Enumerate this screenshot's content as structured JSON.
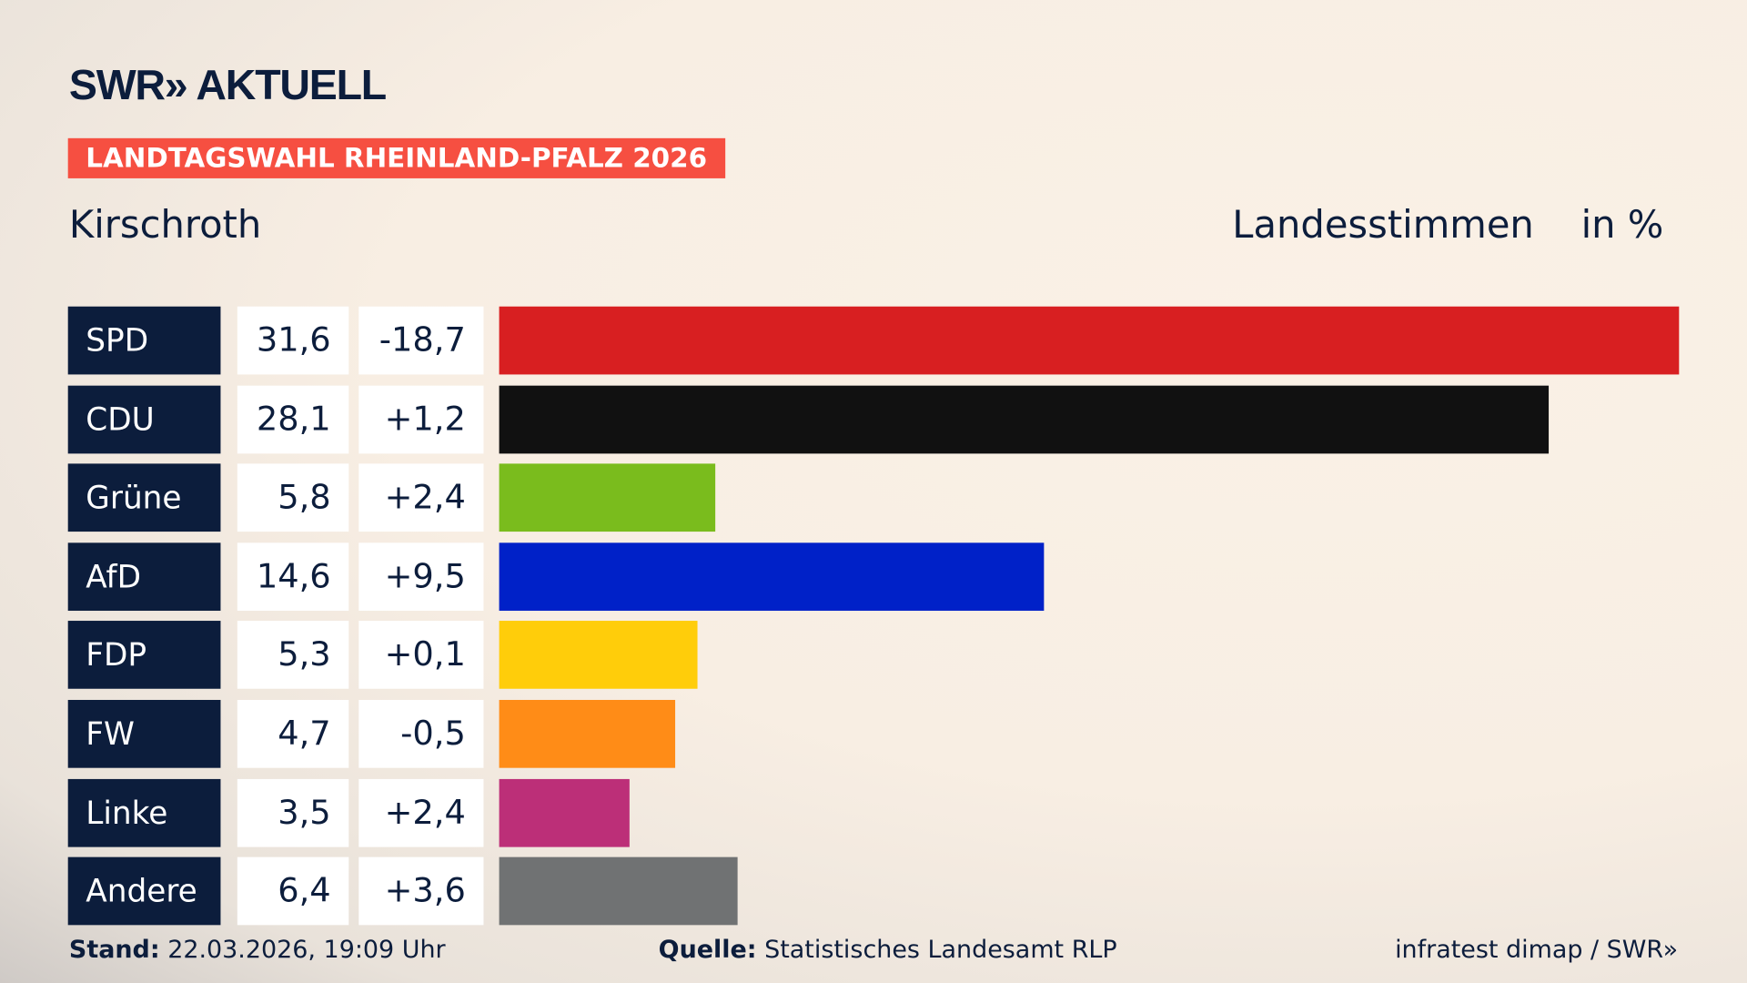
{
  "logo": "SWR» AKTUELL",
  "banner": "LANDTAGSWAHL RHEINLAND-PFALZ 2026",
  "region": "Kirschroth",
  "header": {
    "type_label": "Landesstimmen",
    "unit_label": "in %"
  },
  "colors": {
    "accent": "#f64f41",
    "navy": "#0c1d3c"
  },
  "chart_data": {
    "type": "bar",
    "orientation": "horizontal",
    "categories": [
      "SPD",
      "CDU",
      "Grüne",
      "AfD",
      "FDP",
      "FW",
      "Linke",
      "Andere"
    ],
    "values": [
      31.6,
      28.1,
      5.8,
      14.6,
      5.3,
      4.7,
      3.5,
      6.4
    ],
    "value_labels": [
      "31,6",
      "28,1",
      "5,8",
      "14,6",
      "5,3",
      "4,7",
      "3,5",
      "6,4"
    ],
    "diff_labels": [
      "-18,7",
      "+1,2",
      "+2,4",
      "+9,5",
      "+0,1",
      "-0,5",
      "+2,4",
      "+3,6"
    ],
    "colors": [
      "#d81f21",
      "#111111",
      "#7abc1d",
      "#0021c8",
      "#ffcd0a",
      "#ff8c17",
      "#bc2f78",
      "#707273"
    ]
  },
  "footer": {
    "stand_label": "Stand:",
    "stand_value": "22.03.2026, 19:09 Uhr",
    "source_label": "Quelle:",
    "source_value": "Statistisches Landesamt RLP",
    "credit": "infratest dimap / SWR»"
  }
}
